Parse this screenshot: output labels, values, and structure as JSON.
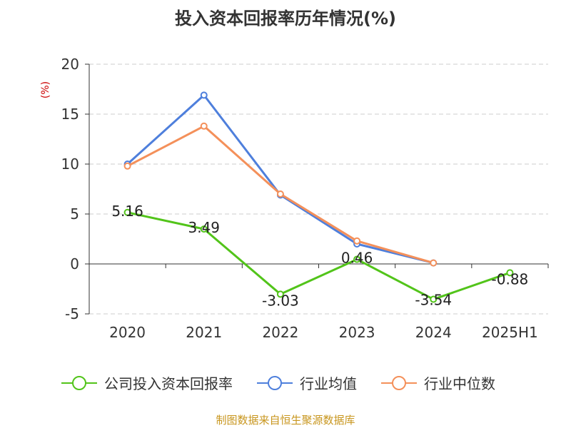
{
  "chart_data": {
    "type": "line",
    "title": "投入资本回报率历年情况(%)",
    "ylabel": "(%)",
    "categories": [
      "2020",
      "2021",
      "2022",
      "2023",
      "2024",
      "2025H1"
    ],
    "ylim": [
      -5,
      20
    ],
    "yticks": [
      "20",
      "15",
      "10",
      "5",
      "0",
      "-5"
    ],
    "grid": true,
    "legend_position": "bottom",
    "series": [
      {
        "name": "公司投入资本回报率",
        "color": "#52c41a",
        "values": [
          5.16,
          3.49,
          -3.03,
          0.46,
          -3.54,
          -0.88
        ],
        "labels": [
          "5.16",
          "3.49",
          "-3.03",
          "0.46",
          "-3.54",
          "-0.88"
        ]
      },
      {
        "name": "行业均值",
        "color": "#4e7fdc",
        "values": [
          10.0,
          16.9,
          6.9,
          2.0,
          0.1,
          null
        ]
      },
      {
        "name": "行业中位数",
        "color": "#f4905a",
        "values": [
          9.8,
          13.8,
          7.0,
          2.3,
          0.1,
          null
        ]
      }
    ]
  },
  "source": "制图数据来自恒生聚源数据库"
}
